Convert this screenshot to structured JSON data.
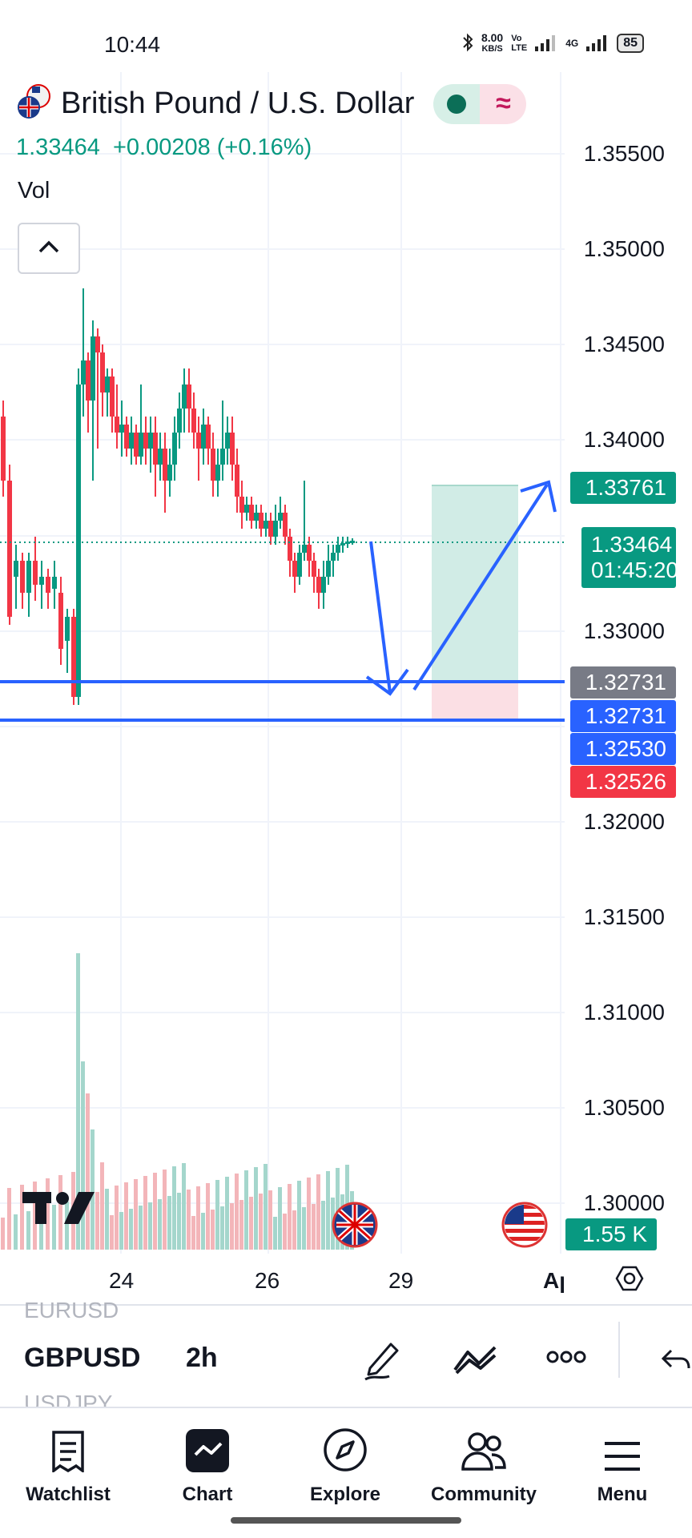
{
  "status_bar": {
    "time": "10:44",
    "net_speed_top": "8.00",
    "net_speed_bottom": "KB/S",
    "network": "4G",
    "battery": "85"
  },
  "header": {
    "symbol_title": "British Pound / U.S. Dollar",
    "last_price": "1.33464",
    "change": "+0.00208 (+0.16%)",
    "volume_label": "Vol",
    "market_status_icon": "dot-icon",
    "indicator_icon": "wave-icon"
  },
  "price_axis": {
    "labels": [
      "1.35500",
      "1.35000",
      "1.34500",
      "1.34000",
      "1.33000",
      "1.32000",
      "1.31500",
      "1.31000",
      "1.30500",
      "1.30000"
    ]
  },
  "price_tags": {
    "target": "1.33761",
    "current_price": "1.33464",
    "countdown": "01:45:20",
    "entry_gray": "1.32731",
    "entry_blue": "1.32731",
    "support_blue": "1.32530",
    "stop_red": "1.32526",
    "volume": "1.55 K"
  },
  "time_axis": {
    "labels": [
      "24",
      "26",
      "29",
      "Ap"
    ]
  },
  "symbol_bar": {
    "prev_symbol": "EURUSD",
    "symbol": "GBPUSD",
    "timeframe": "2h",
    "next_symbol": "USDJPY"
  },
  "bottom_nav": {
    "items": [
      {
        "label": "Watchlist",
        "icon": "watchlist-icon"
      },
      {
        "label": "Chart",
        "icon": "chart-icon"
      },
      {
        "label": "Explore",
        "icon": "compass-icon"
      },
      {
        "label": "Community",
        "icon": "community-icon"
      },
      {
        "label": "Menu",
        "icon": "menu-icon"
      }
    ]
  },
  "colors": {
    "up": "#089981",
    "down": "#f23645",
    "line_blue": "#2962ff",
    "long_zone": "#d1ece6",
    "stop_zone": "#fbdfe4",
    "gray_tag": "#787b86"
  }
}
